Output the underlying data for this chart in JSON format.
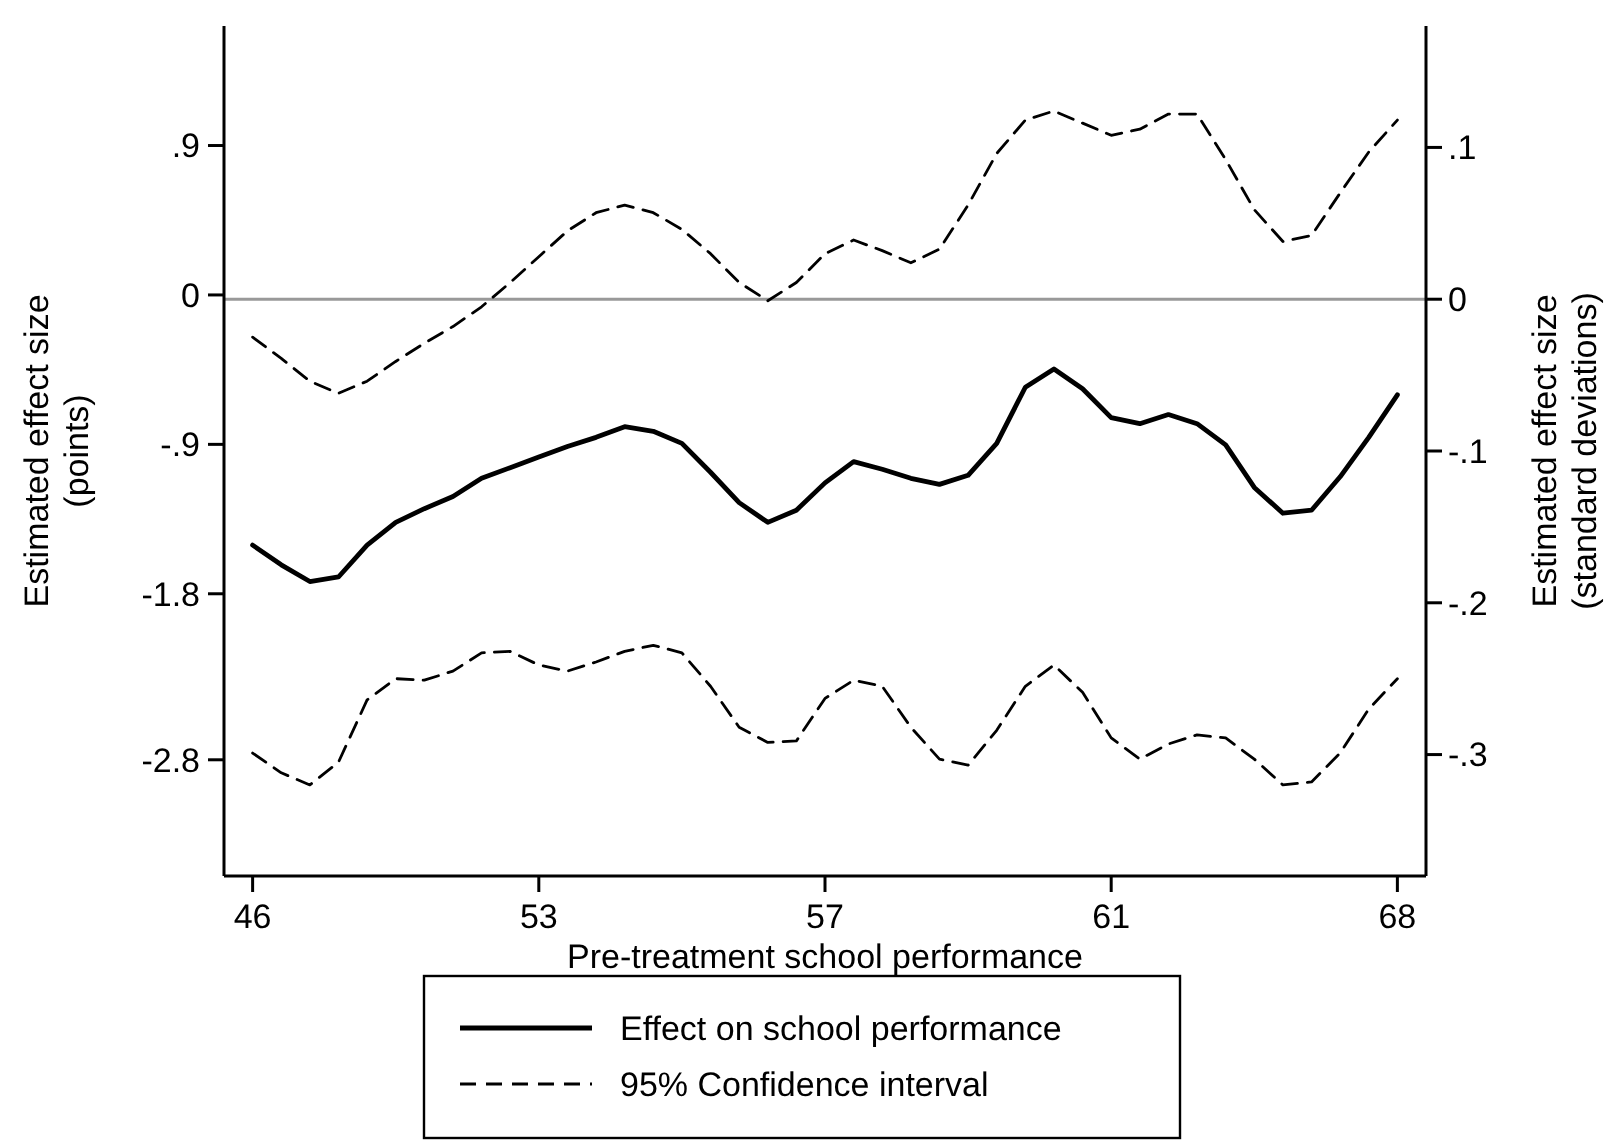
{
  "chart_data": {
    "type": "line",
    "xlabel": "Pre-treatment school performance",
    "ylabel": "Estimated effect size\n(points)",
    "y2label": "Estimated effect size\n(standard deviations)",
    "categories": [
      "46",
      null,
      null,
      null,
      null,
      null,
      null,
      null,
      null,
      null,
      "53",
      null,
      null,
      null,
      null,
      null,
      null,
      null,
      null,
      null,
      "57",
      null,
      null,
      null,
      null,
      null,
      null,
      null,
      null,
      null,
      "61",
      null,
      null,
      null,
      null,
      null,
      null,
      null,
      null,
      null,
      "68"
    ],
    "series": [
      {
        "name": "Effect on school performance",
        "color": "#000000",
        "line_style": "solid",
        "axis": "y2",
        "values": [
          -0.162,
          -0.175,
          -0.186,
          -0.183,
          -0.162,
          -0.147,
          -0.138,
          -0.13,
          -0.118,
          -0.111,
          -0.104,
          -0.097,
          -0.091,
          -0.084,
          -0.087,
          -0.095,
          -0.114,
          -0.134,
          -0.147,
          -0.139,
          -0.121,
          -0.107,
          -0.112,
          -0.118,
          -0.122,
          -0.116,
          -0.095,
          -0.058,
          -0.046,
          -0.059,
          -0.078,
          -0.082,
          -0.076,
          -0.082,
          -0.096,
          -0.124,
          -0.141,
          -0.139,
          -0.117,
          -0.091,
          -0.063
        ]
      },
      {
        "name": "95% Confidence interval",
        "color": "#000000",
        "line_style": "dashed",
        "axis": "y2",
        "values": [
          -0.025,
          -0.039,
          -0.054,
          -0.062,
          -0.054,
          -0.041,
          -0.029,
          -0.018,
          -0.005,
          0.011,
          0.028,
          0.045,
          0.057,
          0.062,
          0.057,
          0.046,
          0.03,
          0.011,
          -0.001,
          0.011,
          0.03,
          0.039,
          0.032,
          0.024,
          0.033,
          0.062,
          0.096,
          0.118,
          0.124,
          0.116,
          0.108,
          0.112,
          0.122,
          0.122,
          0.092,
          0.059,
          0.038,
          0.042,
          0.07,
          0.097,
          0.118
        ]
      },
      {
        "color": "#000000",
        "line_style": "dashed",
        "axis": "y2",
        "values": [
          -0.299,
          -0.312,
          -0.32,
          -0.305,
          -0.264,
          -0.25,
          -0.251,
          -0.245,
          -0.233,
          -0.232,
          -0.241,
          -0.245,
          -0.239,
          -0.232,
          -0.228,
          -0.233,
          -0.255,
          -0.282,
          -0.292,
          -0.291,
          -0.263,
          -0.251,
          -0.255,
          -0.282,
          -0.303,
          -0.307,
          -0.284,
          -0.255,
          -0.241,
          -0.259,
          -0.289,
          -0.303,
          -0.293,
          -0.287,
          -0.289,
          -0.303,
          -0.32,
          -0.318,
          -0.299,
          -0.27,
          -0.25
        ]
      }
    ],
    "ylim": [
      -3.5,
      1.62
    ],
    "yticks": [
      {
        "value": 0.9,
        "label": ".9"
      },
      0,
      {
        "value": -0.9,
        "label": "-.9"
      },
      -1.8,
      -2.8
    ],
    "y2lim": [
      -0.38,
      0.18
    ],
    "y2ticks": [
      {
        "value": 0.1,
        "label": ".1"
      },
      {
        "value": 0,
        "label": "0"
      },
      {
        "value": -0.1,
        "label": "-.1"
      },
      {
        "value": -0.2,
        "label": "-.2"
      },
      {
        "value": -0.3,
        "label": "-.3"
      }
    ],
    "ref_lines": [
      {
        "axis": "y2",
        "value": 0,
        "color": "#999999"
      }
    ],
    "grid": false,
    "legend": "bottom"
  }
}
